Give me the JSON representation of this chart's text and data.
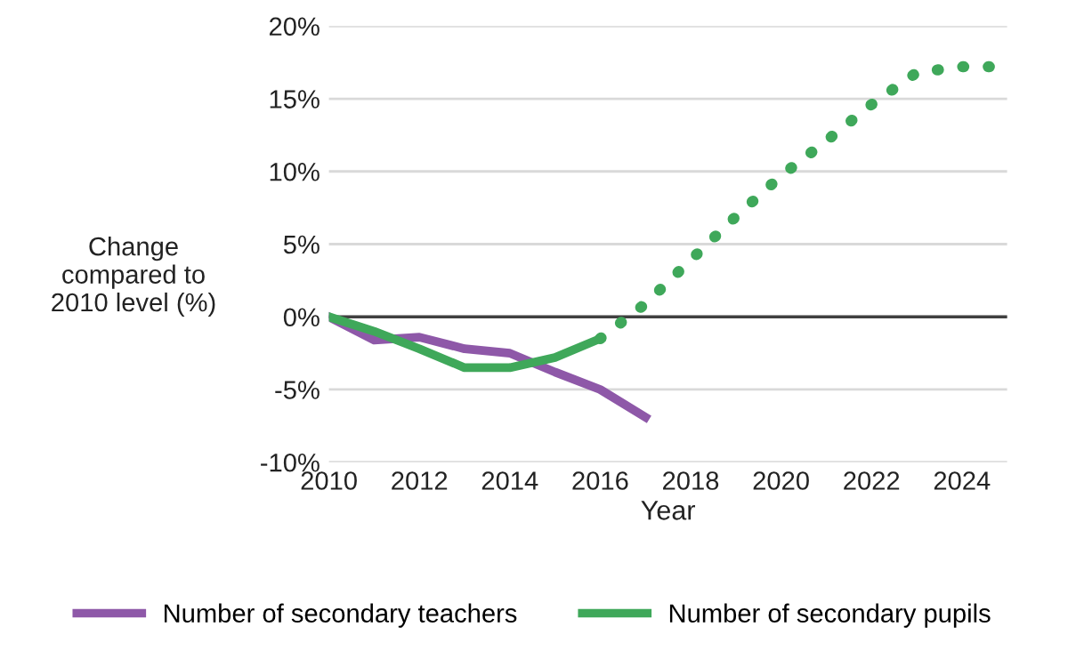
{
  "chart_data": {
    "type": "line",
    "xlabel": "Year",
    "ylabel": "Change\ncompared to\n2010 level (%)",
    "xlim": [
      2010,
      2025
    ],
    "xticks": [
      2010,
      2012,
      2014,
      2016,
      2018,
      2020,
      2022,
      2024
    ],
    "ylim": [
      -10,
      20
    ],
    "yticks": [
      {
        "value": -10,
        "label": "-10%"
      },
      {
        "value": -5,
        "label": "-5%"
      },
      {
        "value": 0,
        "label": "0%"
      },
      {
        "value": 5,
        "label": "5%"
      },
      {
        "value": 10,
        "label": "10%"
      },
      {
        "value": 15,
        "label": "15%"
      },
      {
        "value": 20,
        "label": "20%"
      }
    ],
    "grid": "y",
    "legend": "bottom",
    "ref_lines": [
      {
        "axis": "y",
        "value": 0,
        "color": "#404040"
      }
    ],
    "series": [
      {
        "name": "Number of secondary teachers",
        "color": "#8e58a8",
        "line_style": "solid",
        "x": [
          2010,
          2011,
          2012,
          2013,
          2014,
          2015,
          2016,
          2017
        ],
        "values": [
          0,
          -1.6,
          -1.4,
          -2.2,
          -2.5,
          -3.8,
          -5.0,
          -6.9
        ]
      },
      {
        "name": "Number of secondary pupils",
        "color": "#3fa85a",
        "line_style": "solid",
        "x": [
          2010,
          2011,
          2012,
          2013,
          2014,
          2015,
          2016
        ],
        "values": [
          0,
          -1.0,
          -2.2,
          -3.5,
          -3.5,
          -2.8,
          -1.5
        ]
      },
      {
        "color": "#3fa85a",
        "line_style": "dotted",
        "x": [
          2016,
          2017,
          2018,
          2019,
          2020,
          2021,
          2022,
          2023,
          2024,
          2024.9
        ],
        "values": [
          -1.5,
          0.9,
          3.9,
          6.9,
          9.7,
          12.1,
          14.6,
          16.8,
          17.2,
          17.2
        ]
      }
    ]
  }
}
